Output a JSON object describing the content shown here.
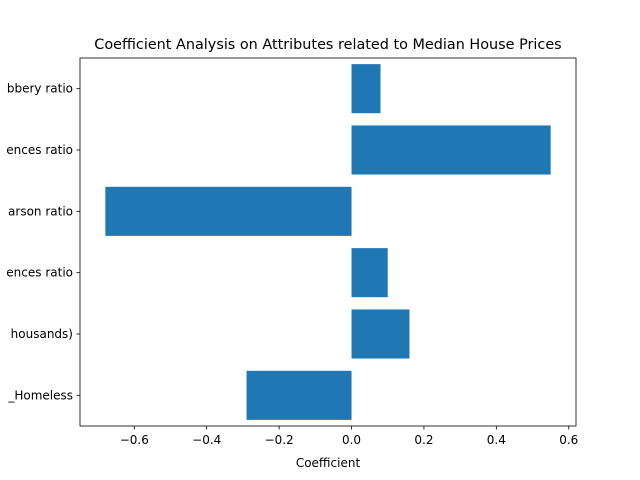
{
  "chart_data": {
    "type": "bar",
    "orientation": "horizontal",
    "title": "Coefficient Analysis on Attributes related to Median House Prices",
    "xlabel": "Coefficient",
    "ylabel": "",
    "xlim": [
      -0.75,
      0.62
    ],
    "xticks": [
      -0.6,
      -0.4,
      -0.2,
      0.0,
      0.2,
      0.4,
      0.6
    ],
    "xtick_labels": [
      "−0.6",
      "−0.4",
      "−0.2",
      "0.0",
      "0.2",
      "0.4",
      "0.6"
    ],
    "categories": [
      "_Homeless",
      "housands)",
      "ences ratio",
      "arson ratio",
      "ences ratio",
      "bbery ratio"
    ],
    "values": [
      -0.29,
      0.16,
      0.1,
      -0.68,
      0.55,
      0.08
    ],
    "bar_color": "#1f77b4",
    "grid": false,
    "legend": false
  }
}
